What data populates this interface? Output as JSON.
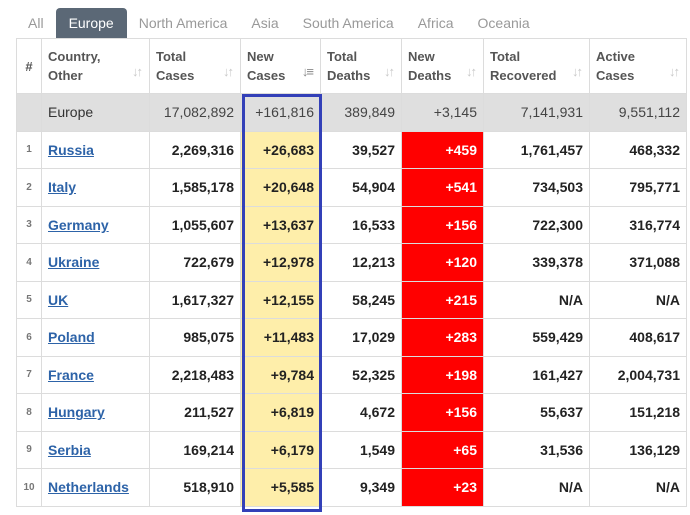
{
  "tabs": [
    "All",
    "Europe",
    "North America",
    "Asia",
    "South America",
    "Africa",
    "Oceania"
  ],
  "active_tab": "Europe",
  "columns": [
    {
      "line1": "#",
      "line2": ""
    },
    {
      "line1": "Country,",
      "line2": "Other"
    },
    {
      "line1": "Total",
      "line2": "Cases"
    },
    {
      "line1": "New",
      "line2": "Cases"
    },
    {
      "line1": "Total",
      "line2": "Deaths"
    },
    {
      "line1": "New",
      "line2": "Deaths"
    },
    {
      "line1": "Total",
      "line2": "Recovered"
    },
    {
      "line1": "Active",
      "line2": "Cases"
    }
  ],
  "sort_icon": "sort-arrows-icon",
  "colors": {
    "new_cases_bg": "#feeeaa",
    "new_deaths_bg": "#ff0000",
    "highlight_border": "#3340b8",
    "active_tab_bg": "#5b6876"
  },
  "total_row": {
    "country": "Europe",
    "total_cases": "17,082,892",
    "new_cases": "+161,816",
    "total_deaths": "389,849",
    "new_deaths": "+3,145",
    "total_recovered": "7,141,931",
    "active_cases": "9,551,112"
  },
  "rows": [
    {
      "rank": "1",
      "country": "Russia",
      "total_cases": "2,269,316",
      "new_cases": "+26,683",
      "total_deaths": "39,527",
      "new_deaths": "+459",
      "total_recovered": "1,761,457",
      "active_cases": "468,332"
    },
    {
      "rank": "2",
      "country": "Italy",
      "total_cases": "1,585,178",
      "new_cases": "+20,648",
      "total_deaths": "54,904",
      "new_deaths": "+541",
      "total_recovered": "734,503",
      "active_cases": "795,771"
    },
    {
      "rank": "3",
      "country": "Germany",
      "total_cases": "1,055,607",
      "new_cases": "+13,637",
      "total_deaths": "16,533",
      "new_deaths": "+156",
      "total_recovered": "722,300",
      "active_cases": "316,774"
    },
    {
      "rank": "4",
      "country": "Ukraine",
      "total_cases": "722,679",
      "new_cases": "+12,978",
      "total_deaths": "12,213",
      "new_deaths": "+120",
      "total_recovered": "339,378",
      "active_cases": "371,088"
    },
    {
      "rank": "5",
      "country": "UK",
      "total_cases": "1,617,327",
      "new_cases": "+12,155",
      "total_deaths": "58,245",
      "new_deaths": "+215",
      "total_recovered": "N/A",
      "active_cases": "N/A"
    },
    {
      "rank": "6",
      "country": "Poland",
      "total_cases": "985,075",
      "new_cases": "+11,483",
      "total_deaths": "17,029",
      "new_deaths": "+283",
      "total_recovered": "559,429",
      "active_cases": "408,617"
    },
    {
      "rank": "7",
      "country": "France",
      "total_cases": "2,218,483",
      "new_cases": "+9,784",
      "total_deaths": "52,325",
      "new_deaths": "+198",
      "total_recovered": "161,427",
      "active_cases": "2,004,731"
    },
    {
      "rank": "8",
      "country": "Hungary",
      "total_cases": "211,527",
      "new_cases": "+6,819",
      "total_deaths": "4,672",
      "new_deaths": "+156",
      "total_recovered": "55,637",
      "active_cases": "151,218"
    },
    {
      "rank": "9",
      "country": "Serbia",
      "total_cases": "169,214",
      "new_cases": "+6,179",
      "total_deaths": "1,549",
      "new_deaths": "+65",
      "total_recovered": "31,536",
      "active_cases": "136,129"
    },
    {
      "rank": "10",
      "country": "Netherlands",
      "total_cases": "518,910",
      "new_cases": "+5,585",
      "total_deaths": "9,349",
      "new_deaths": "+23",
      "total_recovered": "N/A",
      "active_cases": "N/A"
    }
  ]
}
